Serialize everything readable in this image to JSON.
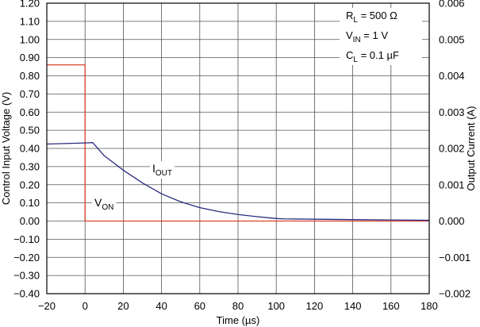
{
  "chart_data": {
    "type": "line",
    "xlabel": "Time (µs)",
    "ylabel_left": "Control Input Voltage (V)",
    "ylabel_right": "Output Current (A)",
    "xlim": [
      -20,
      180
    ],
    "ylim_left": [
      -0.4,
      1.2
    ],
    "ylim_right": [
      -0.002,
      0.006
    ],
    "grid": true,
    "x_ticks": [
      "−20",
      "0",
      "20",
      "40",
      "60",
      "80",
      "100",
      "120",
      "140",
      "160",
      "180"
    ],
    "y_left_ticks": [
      "1.20",
      "1.10",
      "1.00",
      "0.90",
      "0.80",
      "0.70",
      "0.60",
      "0.50",
      "0.40",
      "0.30",
      "0.20",
      "0.10",
      "0.00",
      "−0.10",
      "−0.20",
      "−0.30",
      "−0.40"
    ],
    "y_right_ticks": [
      "0.006",
      "0.005",
      "0.004",
      "0.003",
      "0.002",
      "0.001",
      "0.000",
      "−0.001",
      "−0.002"
    ],
    "legend": {
      "rl": {
        "main": "R",
        "sub": "L",
        "rest": " = 500 Ω"
      },
      "vin": {
        "main": "V",
        "sub": "IN",
        "rest": " = 1 V"
      },
      "cl": {
        "main": "C",
        "sub": "L",
        "rest": " = 0.1 µF"
      }
    },
    "series": [
      {
        "name": "VON",
        "axis": "left",
        "color": "#d9422b",
        "label": {
          "main": "V",
          "sub": "ON"
        },
        "points": [
          [
            -20,
            0.86
          ],
          [
            0,
            0.86
          ],
          [
            0,
            0.0
          ],
          [
            180,
            0.0
          ]
        ]
      },
      {
        "name": "IOUT",
        "axis": "right",
        "color": "#2b2b7f",
        "label": {
          "main": "I",
          "sub": "OUT"
        },
        "points": [
          [
            -20,
            0.00212
          ],
          [
            0,
            0.00215
          ],
          [
            4,
            0.00216
          ],
          [
            10,
            0.0018
          ],
          [
            20,
            0.0014
          ],
          [
            30,
            0.00105
          ],
          [
            40,
            0.00075
          ],
          [
            50,
            0.00053
          ],
          [
            60,
            0.00037
          ],
          [
            70,
            0.00026
          ],
          [
            80,
            0.00018
          ],
          [
            90,
            0.00012
          ],
          [
            100,
            7e-05
          ],
          [
            104,
            6e-05
          ],
          [
            120,
            5e-05
          ],
          [
            140,
            4e-05
          ],
          [
            160,
            3e-05
          ],
          [
            180,
            2e-05
          ]
        ]
      }
    ]
  }
}
